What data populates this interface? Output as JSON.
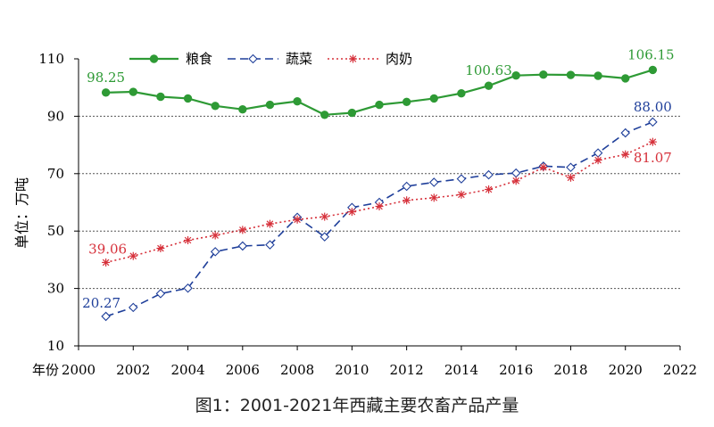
{
  "chart_data": {
    "type": "line",
    "title": "",
    "caption": "图1：2001-2021年西藏主要农畜产品产量",
    "xlabel": "年份",
    "ylabel": "单位：万吨",
    "xlim": [
      2000,
      2022
    ],
    "ylim": [
      10,
      110
    ],
    "xticks": [
      2000,
      2002,
      2004,
      2006,
      2008,
      2010,
      2012,
      2014,
      2016,
      2018,
      2020,
      2022
    ],
    "yticks": [
      10,
      30,
      50,
      70,
      90,
      110
    ],
    "grid": "dotted horizontal at 30, 50, 70, 90",
    "legend_position": "top",
    "x": [
      2001,
      2002,
      2003,
      2004,
      2005,
      2006,
      2007,
      2008,
      2009,
      2010,
      2011,
      2012,
      2013,
      2014,
      2015,
      2016,
      2017,
      2018,
      2019,
      2020,
      2021
    ],
    "series": [
      {
        "name": "粮食",
        "color": "#2e9a35",
        "style": "solid",
        "marker": "filled-circle",
        "values": [
          98.25,
          98.5,
          96.8,
          96.2,
          93.6,
          92.4,
          94.0,
          95.2,
          90.5,
          91.2,
          94.0,
          95.0,
          96.2,
          98.0,
          100.63,
          104.2,
          104.5,
          104.4,
          104.1,
          103.2,
          106.15
        ],
        "labels": [
          {
            "x": 2001,
            "text": "98.25"
          },
          {
            "x": 2015,
            "text": "100.63"
          },
          {
            "x": 2021,
            "text": "106.15"
          }
        ]
      },
      {
        "name": "蔬菜",
        "color": "#1f3f9a",
        "style": "dashed",
        "marker": "open-diamond",
        "values": [
          20.27,
          23.4,
          28.2,
          30.1,
          42.8,
          44.8,
          45.2,
          54.8,
          48.0,
          58.2,
          60.0,
          65.6,
          67.0,
          68.2,
          69.6,
          70.2,
          72.6,
          72.2,
          77.2,
          84.2,
          88.0
        ],
        "labels": [
          {
            "x": 2001,
            "text": "20.27"
          },
          {
            "x": 2021,
            "text": "88.00"
          }
        ]
      },
      {
        "name": "肉奶",
        "color": "#d6303a",
        "style": "dotted",
        "marker": "asterisk",
        "values": [
          39.06,
          41.3,
          44.0,
          46.8,
          48.5,
          50.4,
          52.5,
          54.0,
          55.0,
          56.7,
          58.6,
          60.7,
          61.6,
          62.7,
          64.5,
          67.5,
          72.2,
          68.6,
          74.7,
          76.7,
          81.07
        ],
        "labels": [
          {
            "x": 2001,
            "text": "39.06"
          },
          {
            "x": 2021,
            "text": "81.07"
          }
        ]
      }
    ]
  }
}
